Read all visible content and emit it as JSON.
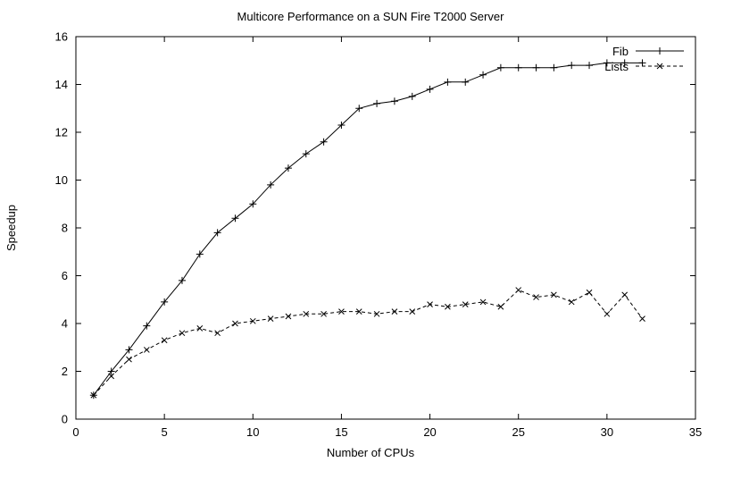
{
  "page": {
    "background": "#ffffff",
    "line_color": "#000000",
    "text_color": "#000000"
  },
  "chart_data": {
    "type": "line",
    "title": "Multicore Performance on a SUN Fire T2000 Server",
    "xlabel": "Number of CPUs",
    "ylabel": "Speedup",
    "xlim": [
      0,
      35
    ],
    "ylim": [
      0,
      16
    ],
    "xticks": [
      0,
      5,
      10,
      15,
      20,
      25,
      30,
      35
    ],
    "yticks": [
      0,
      2,
      4,
      6,
      8,
      10,
      12,
      14,
      16
    ],
    "grid": false,
    "legend_position": "top-right-inside",
    "x": [
      1,
      2,
      3,
      4,
      5,
      6,
      7,
      8,
      9,
      10,
      11,
      12,
      13,
      14,
      15,
      16,
      17,
      18,
      19,
      20,
      21,
      22,
      23,
      24,
      25,
      26,
      27,
      28,
      29,
      30,
      31,
      32
    ],
    "series": [
      {
        "name": "Fib",
        "line": "solid",
        "marker": "plus",
        "values": [
          1.0,
          2.0,
          2.9,
          3.9,
          4.9,
          5.8,
          6.9,
          7.8,
          8.4,
          9.0,
          9.8,
          10.5,
          11.1,
          11.6,
          12.3,
          13.0,
          13.2,
          13.3,
          13.5,
          13.8,
          14.1,
          14.1,
          14.4,
          14.7,
          14.7,
          14.7,
          14.7,
          14.8,
          14.8,
          14.9,
          14.9,
          14.9
        ]
      },
      {
        "name": "Lists",
        "line": "dashed",
        "marker": "cross",
        "values": [
          1.0,
          1.8,
          2.5,
          2.9,
          3.3,
          3.6,
          3.8,
          3.6,
          4.0,
          4.1,
          4.2,
          4.3,
          4.4,
          4.4,
          4.5,
          4.5,
          4.4,
          4.5,
          4.5,
          4.8,
          4.7,
          4.8,
          4.9,
          4.7,
          5.4,
          5.1,
          5.2,
          4.9,
          5.3,
          4.4,
          5.2,
          4.2
        ]
      }
    ]
  }
}
